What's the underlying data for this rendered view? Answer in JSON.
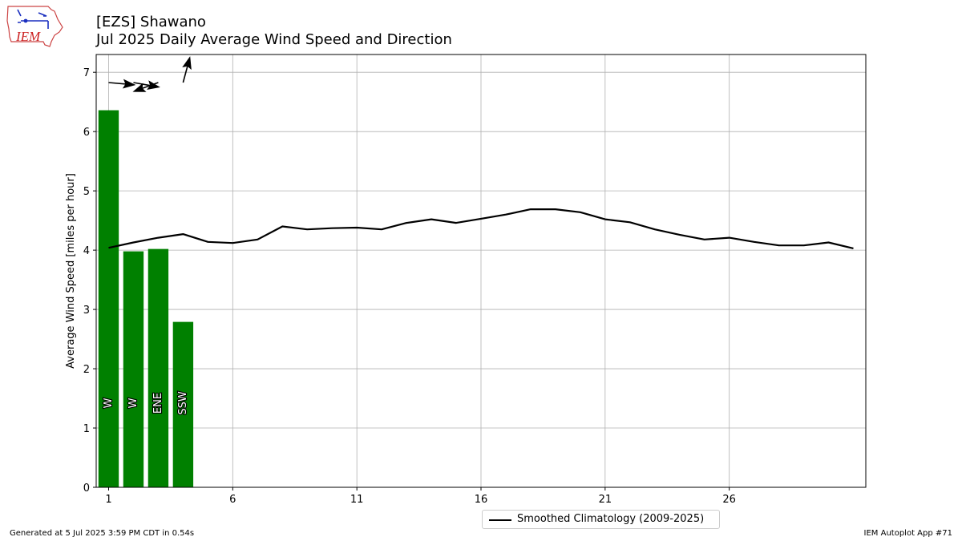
{
  "header": {
    "title": "[EZS] Shawano",
    "subtitle": "Jul 2025 Daily Average Wind Speed and Direction",
    "logo_text": "IEM"
  },
  "footer": {
    "generated": "Generated at 5 Jul 2025 3:59 PM CDT in 0.54s",
    "app": "IEM Autoplot App #71"
  },
  "legend": {
    "entries": [
      {
        "label": "Smoothed Climatology (2009-2025)",
        "color": "#000000"
      }
    ],
    "position": "bottom-center"
  },
  "colors": {
    "bar": "#008000",
    "climatology": "#000000",
    "grid": "#b0b0b0"
  },
  "chart_data": {
    "type": "bar",
    "title": "[EZS] Shawano",
    "subtitle": "Jul 2025 Daily Average Wind Speed and Direction",
    "xlabel": "",
    "ylabel": "Average Wind Speed [miles per hour]",
    "xlim": [
      0.5,
      31.5
    ],
    "ylim": [
      0,
      7.3
    ],
    "xticks": [
      1,
      6,
      11,
      16,
      21,
      26
    ],
    "xtick_labels": [
      "1",
      "6",
      "11",
      "16",
      "21",
      "26"
    ],
    "yticks": [
      0,
      1,
      2,
      3,
      4,
      5,
      6,
      7
    ],
    "ytick_labels": [
      "0",
      "1",
      "2",
      "3",
      "4",
      "5",
      "6",
      "7"
    ],
    "grid": true,
    "bars": {
      "days": [
        1,
        2,
        3,
        4
      ],
      "values": [
        6.36,
        3.98,
        4.02,
        2.79
      ],
      "direction_labels": [
        "W",
        "W",
        "ENE",
        "SSW"
      ],
      "direction_degrees": [
        275,
        280,
        70,
        195
      ]
    },
    "series": [
      {
        "name": "Smoothed Climatology (2009-2025)",
        "type": "line",
        "x": [
          1,
          2,
          3,
          4,
          5,
          6,
          7,
          8,
          9,
          10,
          11,
          12,
          13,
          14,
          15,
          16,
          17,
          18,
          19,
          20,
          21,
          22,
          23,
          24,
          25,
          26,
          27,
          28,
          29,
          30,
          31
        ],
        "values": [
          4.04,
          4.13,
          4.21,
          4.27,
          4.14,
          4.12,
          4.18,
          4.4,
          4.35,
          4.37,
          4.38,
          4.35,
          4.46,
          4.52,
          4.46,
          4.53,
          4.6,
          4.69,
          4.69,
          4.64,
          4.52,
          4.47,
          4.35,
          4.26,
          4.18,
          4.21,
          4.14,
          4.08,
          4.08,
          4.13,
          4.03
        ]
      }
    ]
  }
}
